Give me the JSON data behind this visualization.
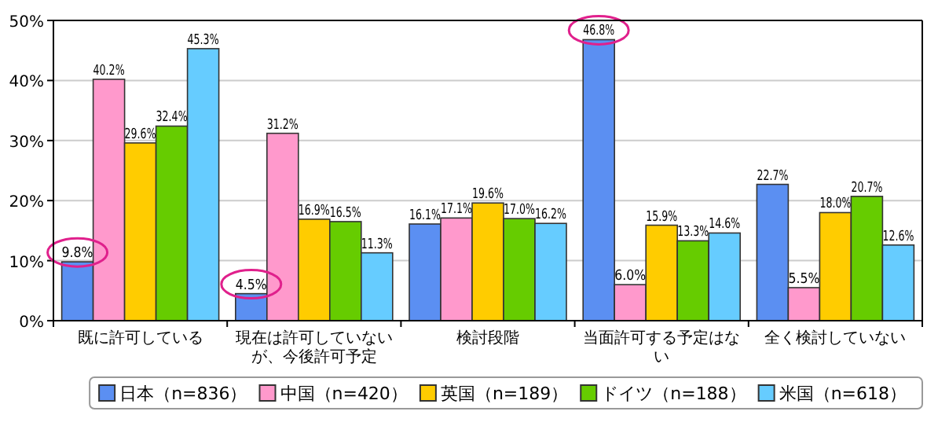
{
  "chart_data": {
    "type": "bar",
    "categories": [
      "既に許可している",
      "現在は許可していないが、今後許可予定",
      "検討段階",
      "当面許可する予定はない",
      "全く検討していない"
    ],
    "series": [
      {
        "name": "日本（n=836）",
        "color": "#5b8ff2",
        "values": [
          9.8,
          4.5,
          16.1,
          46.8,
          22.7
        ],
        "value_labels": [
          "9.8%",
          "4.5%",
          "16.1%",
          "46.8%",
          "22.7%"
        ]
      },
      {
        "name": "中国（n=420）",
        "color": "#ff99cc",
        "values": [
          40.2,
          31.2,
          17.1,
          6.0,
          5.5
        ],
        "value_labels": [
          "40.2%",
          "31.2%",
          "17.1%",
          "6.0%",
          "5.5%"
        ]
      },
      {
        "name": "英国（n=189）",
        "color": "#ffcc00",
        "values": [
          29.6,
          16.9,
          19.6,
          15.9,
          18.0
        ],
        "value_labels": [
          "29.6%",
          "16.9%",
          "19.6%",
          "15.9%",
          "18.0%"
        ]
      },
      {
        "name": "ドイツ（n=188）",
        "color": "#66cc00",
        "values": [
          32.4,
          16.5,
          17.0,
          13.3,
          20.7
        ],
        "value_labels": [
          "32.4%",
          "16.5%",
          "17.0%",
          "13.3%",
          "20.7%"
        ]
      },
      {
        "name": "米国（n=618）",
        "color": "#66ccff",
        "values": [
          45.3,
          11.3,
          16.2,
          14.6,
          12.6
        ],
        "value_labels": [
          "45.3%",
          "11.3%",
          "16.2%",
          "14.6%",
          "12.6%"
        ]
      }
    ],
    "ylim": [
      0,
      50
    ],
    "yticks": [
      {
        "value": 0,
        "label": "0%"
      },
      {
        "value": 10,
        "label": "10%"
      },
      {
        "value": 20,
        "label": "20%"
      },
      {
        "value": 30,
        "label": "30%"
      },
      {
        "value": 40,
        "label": "40%"
      },
      {
        "value": 50,
        "label": "50%"
      }
    ],
    "grid": "y",
    "legend": "bottom right"
  }
}
